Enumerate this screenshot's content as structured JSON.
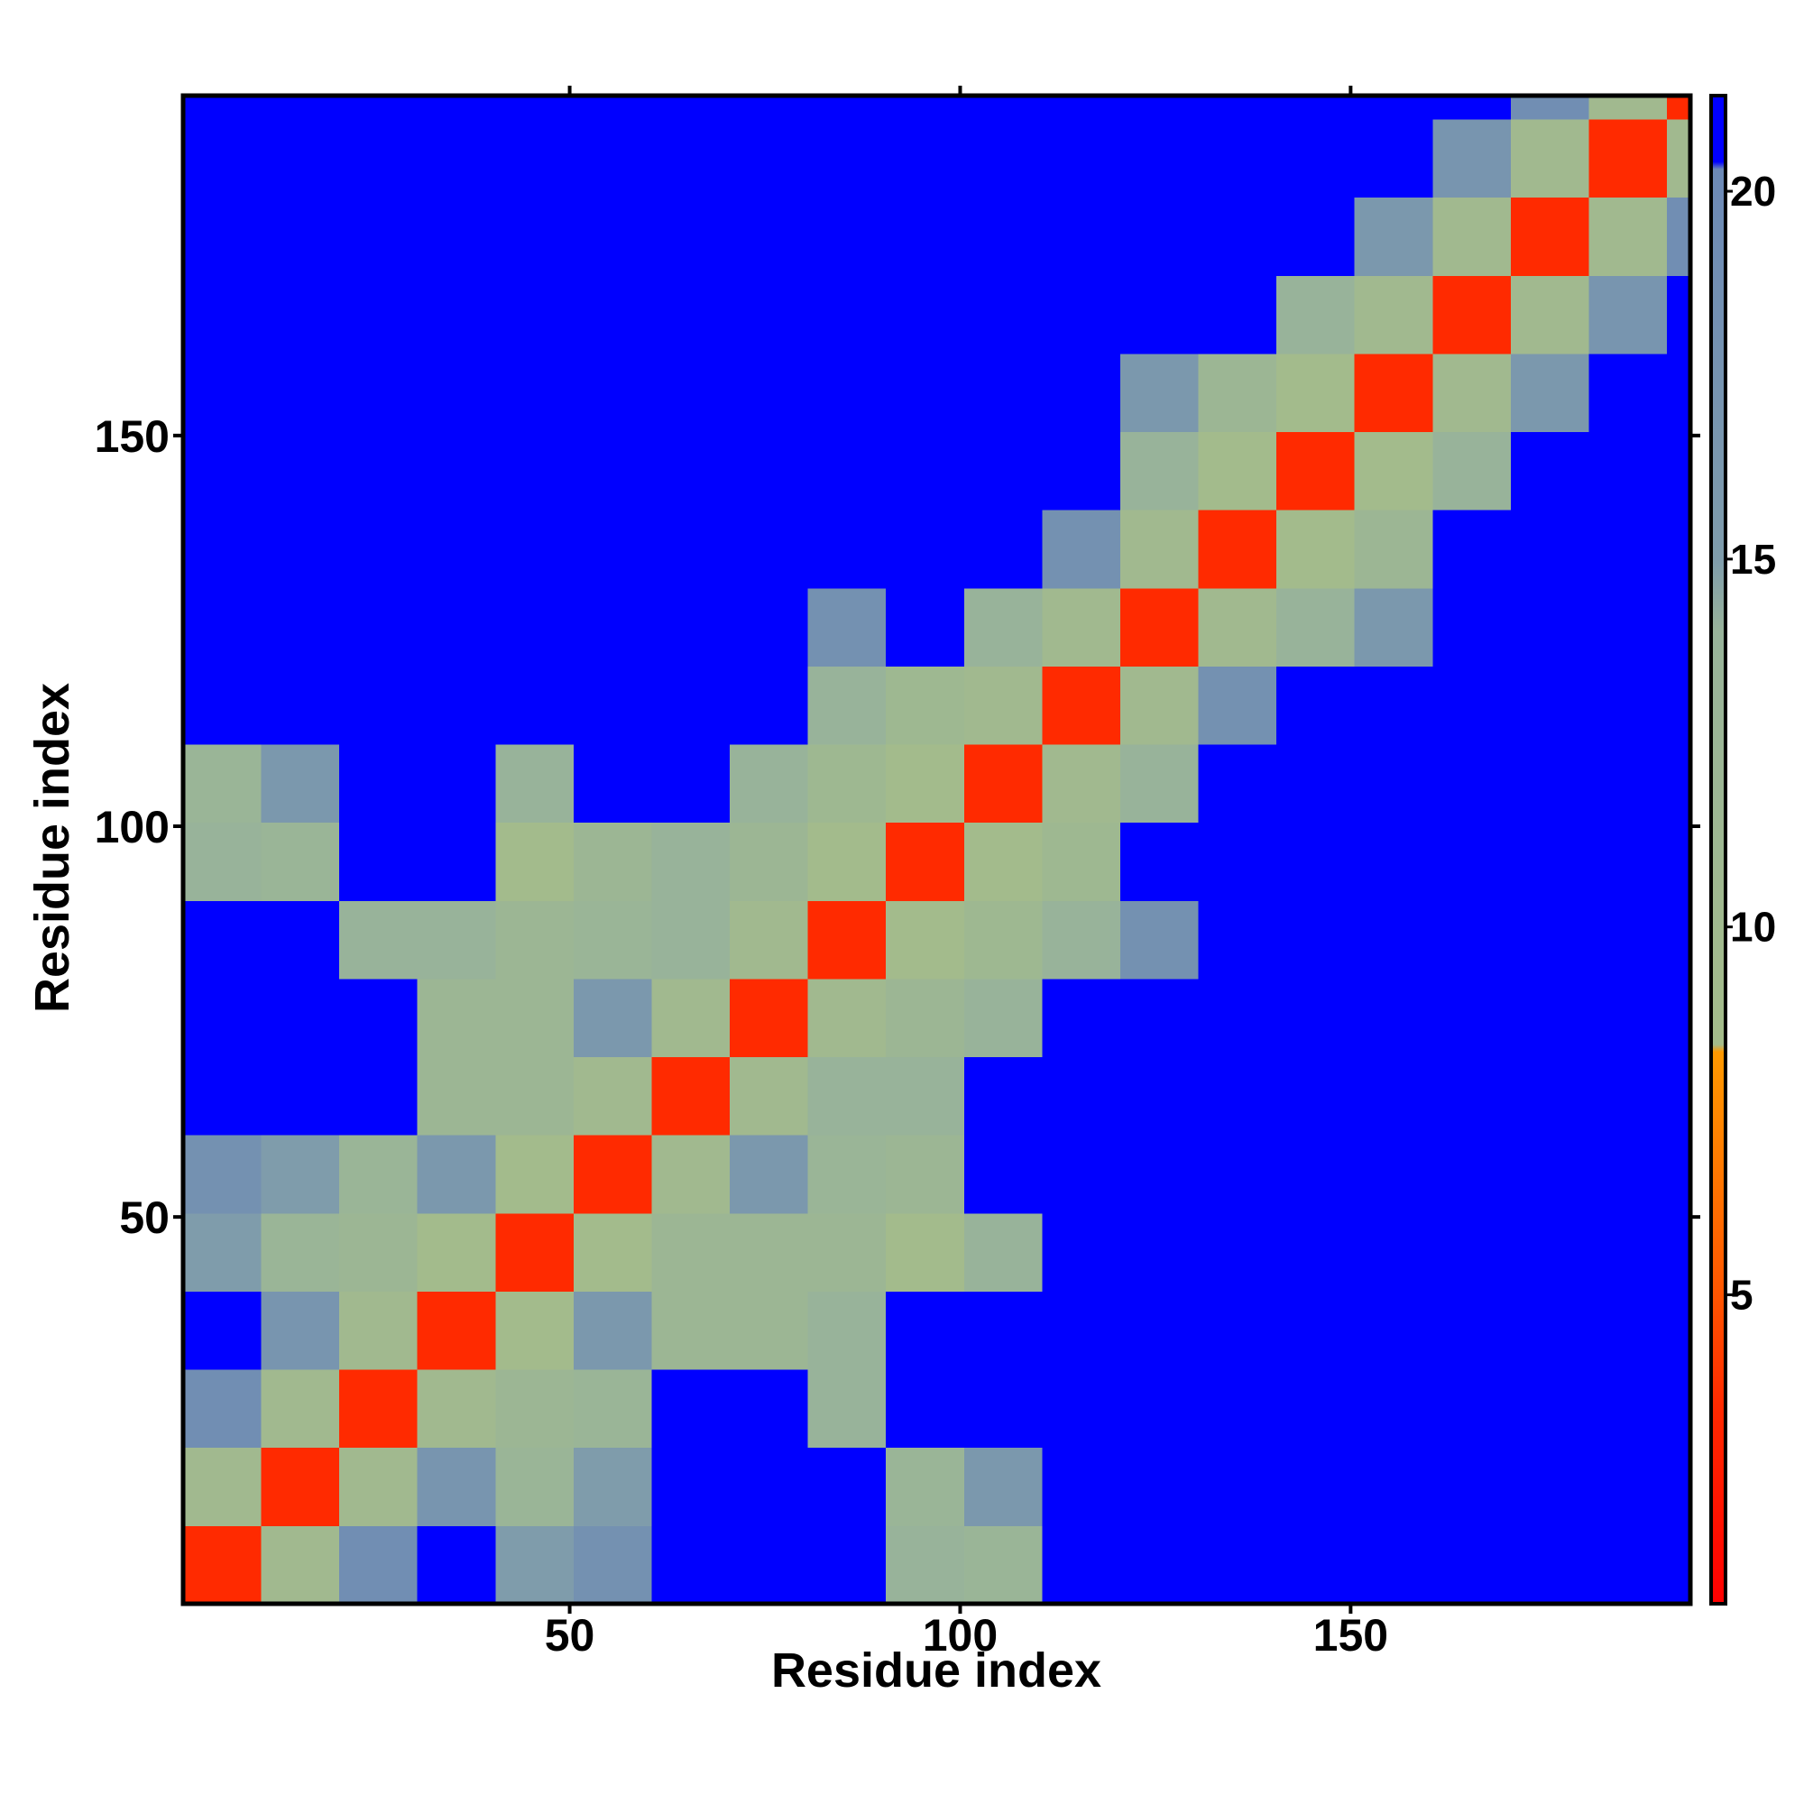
{
  "chart_data": {
    "type": "heatmap",
    "xlabel": "Residue index",
    "ylabel": "Residue index",
    "xbins": [
      0.5,
      10.5,
      20.5,
      30.5,
      40.5,
      50.5,
      60.5,
      70.5,
      80.5,
      90.5,
      100.5,
      110.5,
      120.5,
      130.5,
      140.5,
      150.5,
      160.5,
      170.5,
      180.5,
      190.5,
      193.5
    ],
    "ybins": [
      0.5,
      10.5,
      20.5,
      30.5,
      40.5,
      50.5,
      60.5,
      70.5,
      80.5,
      90.5,
      100.5,
      110.5,
      120.5,
      130.5,
      140.5,
      150.5,
      160.5,
      170.5,
      180.5,
      190.5,
      193.5
    ],
    "z": [
      [
        3.5,
        10,
        19,
        21,
        15,
        18,
        21,
        21,
        21,
        14,
        13,
        21,
        21,
        21,
        21,
        21,
        21,
        21,
        21,
        21
      ],
      [
        10,
        3.5,
        10,
        17,
        13,
        15,
        21,
        21,
        21,
        13,
        16,
        21,
        21,
        21,
        21,
        21,
        21,
        21,
        21,
        21
      ],
      [
        19,
        10,
        3.5,
        10,
        12,
        13,
        21,
        21,
        14,
        21,
        21,
        21,
        21,
        21,
        21,
        21,
        21,
        21,
        21,
        21
      ],
      [
        21,
        17,
        10,
        3.5,
        9,
        16,
        12,
        12,
        14,
        21,
        21,
        21,
        21,
        21,
        21,
        21,
        21,
        21,
        21,
        21
      ],
      [
        15,
        13,
        12,
        9,
        3.5,
        9,
        12,
        12,
        12,
        9,
        14,
        21,
        21,
        21,
        21,
        21,
        21,
        21,
        21,
        21
      ],
      [
        18,
        15,
        13,
        16,
        9,
        3.5,
        10,
        16,
        13,
        12,
        21,
        21,
        21,
        21,
        21,
        21,
        21,
        21,
        21,
        21
      ],
      [
        21,
        21,
        21,
        12,
        12,
        10,
        3.5,
        10,
        14,
        14,
        21,
        21,
        21,
        21,
        21,
        21,
        21,
        21,
        21,
        21
      ],
      [
        21,
        21,
        21,
        12,
        12,
        16,
        10,
        3.5,
        10,
        12,
        14,
        21,
        21,
        21,
        21,
        21,
        21,
        21,
        21,
        21
      ],
      [
        21,
        21,
        14,
        14,
        12,
        13,
        14,
        10,
        3.5,
        9,
        11,
        14,
        18,
        21,
        21,
        21,
        21,
        21,
        21,
        21
      ],
      [
        14,
        13,
        21,
        21,
        9,
        12,
        14,
        12,
        9,
        3.5,
        9,
        11,
        21,
        21,
        21,
        21,
        21,
        21,
        21,
        21
      ],
      [
        13,
        16,
        21,
        21,
        14,
        21,
        21,
        14,
        11,
        9,
        3.5,
        10,
        14,
        21,
        21,
        21,
        21,
        21,
        21,
        21
      ],
      [
        21,
        21,
        21,
        21,
        21,
        21,
        21,
        21,
        14,
        11,
        10,
        3.5,
        10,
        18,
        21,
        21,
        21,
        21,
        21,
        21
      ],
      [
        21,
        21,
        21,
        21,
        21,
        21,
        21,
        21,
        18,
        21,
        14,
        10,
        3.5,
        10,
        14,
        16,
        21,
        21,
        21,
        21
      ],
      [
        21,
        21,
        21,
        21,
        21,
        21,
        21,
        21,
        21,
        21,
        21,
        18,
        10,
        3.5,
        9,
        12,
        21,
        21,
        21,
        21
      ],
      [
        21,
        21,
        21,
        21,
        21,
        21,
        21,
        21,
        21,
        21,
        21,
        21,
        14,
        9,
        3.5,
        9,
        14,
        21,
        21,
        21
      ],
      [
        21,
        21,
        21,
        21,
        21,
        21,
        21,
        21,
        21,
        21,
        21,
        21,
        16,
        12,
        9,
        3.5,
        10,
        16,
        21,
        21
      ],
      [
        21,
        21,
        21,
        21,
        21,
        21,
        21,
        21,
        21,
        21,
        21,
        21,
        21,
        21,
        14,
        10,
        3.5,
        10,
        17,
        21
      ],
      [
        21,
        21,
        21,
        21,
        21,
        21,
        21,
        21,
        21,
        21,
        21,
        21,
        21,
        21,
        21,
        16,
        10,
        3.5,
        10,
        19
      ],
      [
        21,
        21,
        21,
        21,
        21,
        21,
        21,
        21,
        21,
        21,
        21,
        21,
        21,
        21,
        21,
        21,
        17,
        10,
        3.5,
        10
      ],
      [
        21,
        21,
        21,
        21,
        21,
        21,
        21,
        21,
        21,
        21,
        21,
        21,
        21,
        21,
        21,
        21,
        21,
        19,
        10,
        3.5
      ]
    ],
    "xlim": [
      0.5,
      193.5
    ],
    "ylim": [
      0.5,
      193.5
    ],
    "xticks": [
      50,
      100,
      150
    ],
    "yticks": [
      50,
      100,
      150
    ],
    "colorbar": {
      "clim": [
        0.8,
        21.3
      ],
      "ticks": [
        5,
        10,
        15,
        20
      ],
      "colorscale": [
        [
          0.8,
          "#ff0000"
        ],
        [
          3.5,
          "#ff2a00"
        ],
        [
          5,
          "#ff5500"
        ],
        [
          8.3,
          "#ff9900"
        ],
        [
          8.4,
          "#a4bc8a"
        ],
        [
          14,
          "#98b39a"
        ],
        [
          15,
          "#7f9cab"
        ],
        [
          20.3,
          "#6c89b6"
        ],
        [
          20.4,
          "#0000ff"
        ],
        [
          21.3,
          "#0000ff"
        ]
      ]
    }
  }
}
